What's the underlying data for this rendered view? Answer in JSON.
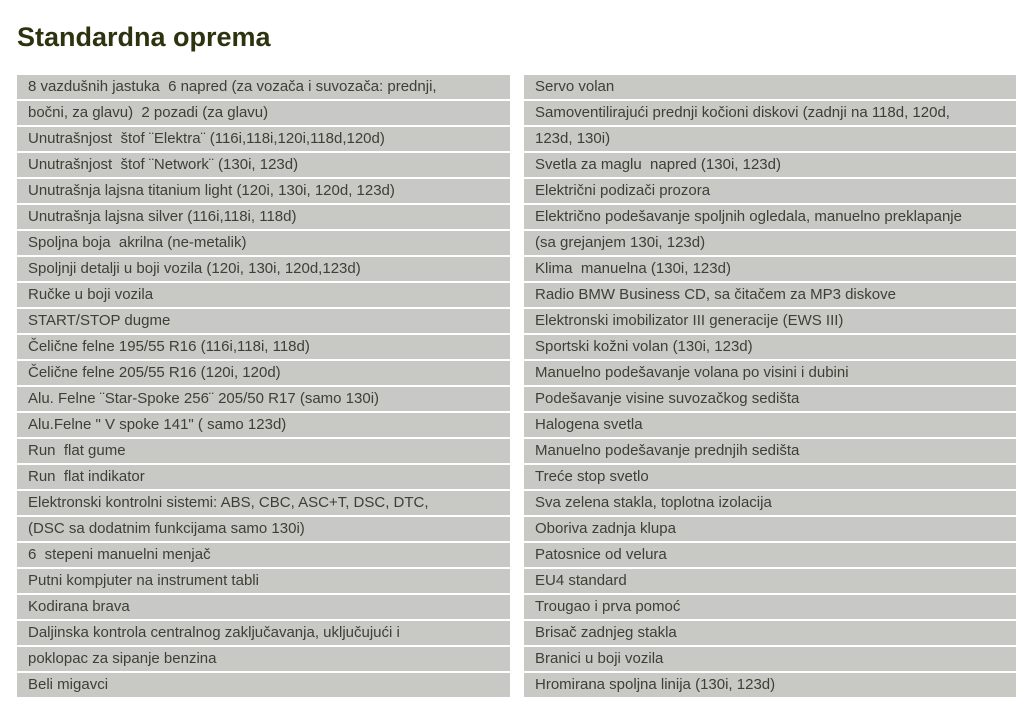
{
  "title": "Standardna oprema",
  "colors": {
    "bar_bg": "#c8c8c4",
    "text": "#3e3f35",
    "title": "#2d330f",
    "page_bg": "#ffffff"
  },
  "columns": [
    {
      "name": "left",
      "rows": [
        [
          "8 vazdušnih jastuka  6 napred (za vozača i suvozača: prednji,",
          "bočni, za glavu)  2 pozadi (za glavu)"
        ],
        [
          "Unutrašnjost  štof ¨Elektra¨ (116i,118i,120i,118d,120d)"
        ],
        [
          "Unutrašnjost  štof ¨Network¨ (130i, 123d)"
        ],
        [
          "Unutrašnja lajsna titanium light (120i, 130i, 120d, 123d)"
        ],
        [
          "Unutrašnja lajsna silver (116i,118i, 118d)"
        ],
        [
          "Spoljna boja  akrilna (ne-metalik)"
        ],
        [
          "Spoljnji detalji u boji vozila (120i, 130i, 120d,123d)"
        ],
        [
          "Ručke u boji vozila"
        ],
        [
          "START/STOP dugme"
        ],
        [
          "Čelične felne 195/55 R16 (116i,118i, 118d)"
        ],
        [
          "Čelične felne 205/55 R16 (120i, 120d)"
        ],
        [
          "Alu. Felne ¨Star-Spoke 256¨ 205/50 R17 (samo 130i)"
        ],
        [
          "Alu.Felne \" V spoke 141\" ( samo 123d)"
        ],
        [
          "Run  flat gume"
        ],
        [
          "Run  flat indikator"
        ],
        [
          "Elektronski kontrolni sistemi: ABS, CBC, ASC+T, DSC, DTC,",
          "(DSC sa dodatnim funkcijama samo 130i)"
        ],
        [
          "6  stepeni manuelni menjač"
        ],
        [
          "Putni kompjuter na instrument tabli"
        ],
        [
          "Kodirana brava"
        ],
        [
          "Daljinska kontrola centralnog zaključavanja, uključujući i",
          "poklopac za sipanje benzina"
        ],
        [
          "Beli migavci"
        ]
      ]
    },
    {
      "name": "right",
      "rows": [
        [
          "Servo volan"
        ],
        [
          "Samoventilirajući prednji kočioni diskovi (zadnji na 118d, 120d,",
          "123d, 130i)"
        ],
        [
          "Svetla za maglu  napred (130i, 123d)"
        ],
        [
          "Električni podizači prozora"
        ],
        [
          "Električno podešavanje spoljnih ogledala, manuelno preklapanje",
          "(sa grejanjem 130i, 123d)"
        ],
        [
          "Klima  manuelna (130i, 123d)"
        ],
        [
          "Radio BMW Business CD, sa čitačem za MP3 diskove"
        ],
        [
          "Elektronski imobilizator III generacije (EWS III)"
        ],
        [
          "Sportski kožni volan (130i, 123d)"
        ],
        [
          "Manuelno podešavanje volana po visini i dubini"
        ],
        [
          "Podešavanje visine suvozačkog sedišta"
        ],
        [
          "Halogena svetla"
        ],
        [
          "Manuelno podešavanje prednjih sedišta"
        ],
        [
          "Treće stop svetlo"
        ],
        [
          "Sva zelena stakla, toplotna izolacija"
        ],
        [
          "Oboriva zadnja klupa"
        ],
        [
          "Patosnice od velura"
        ],
        [
          "EU4 standard"
        ],
        [
          "Trougao i prva pomoć"
        ],
        [
          "Brisač zadnjeg stakla"
        ],
        [
          "Branici u boji vozila"
        ],
        [
          "Hromirana spoljna linija (130i, 123d)"
        ]
      ]
    }
  ]
}
